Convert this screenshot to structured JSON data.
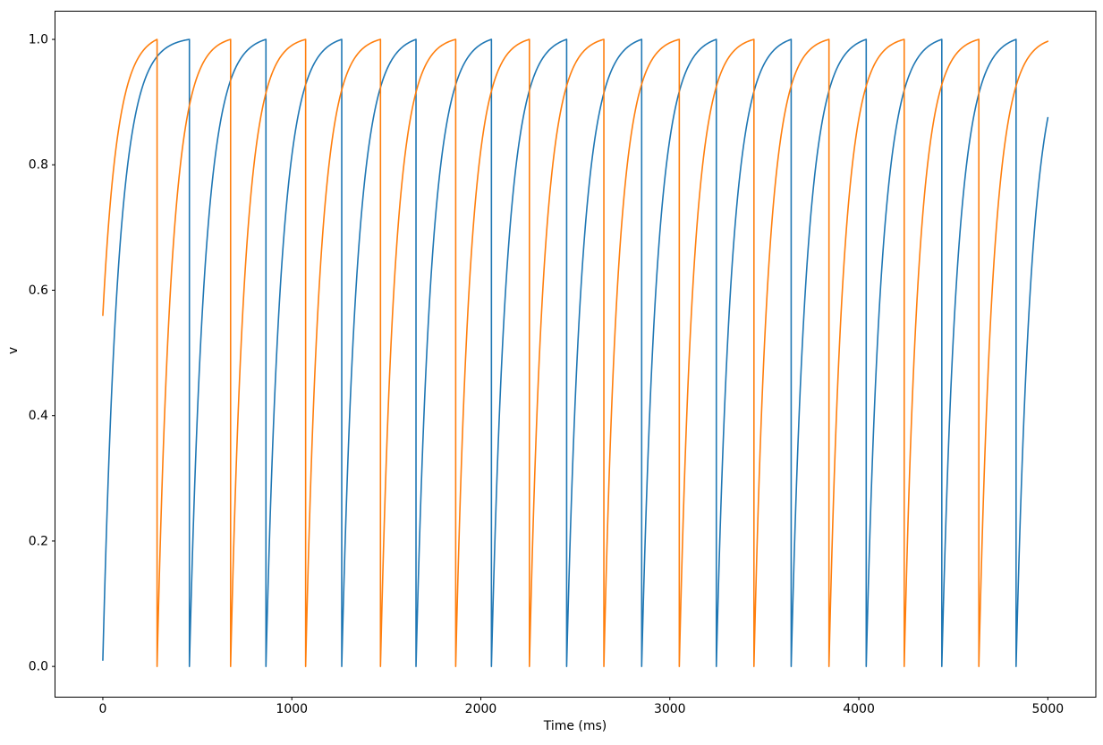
{
  "figure": {
    "background_color": "#ffffff",
    "title": ""
  },
  "chart_data": {
    "type": "line",
    "title": "",
    "xlabel": "Time (ms)",
    "ylabel": "v",
    "xlim": [
      -253,
      5254
    ],
    "ylim": [
      -0.049,
      1.045
    ],
    "x_ticks": [
      0,
      1000,
      2000,
      3000,
      4000,
      5000
    ],
    "x_tick_labels": [
      "0",
      "1000",
      "2000",
      "3000",
      "4000",
      "5000"
    ],
    "y_ticks": [
      0.0,
      0.2,
      0.4,
      0.6,
      0.8,
      1.0
    ],
    "y_tick_labels": [
      "0.0",
      "0.2",
      "0.4",
      "0.6",
      "0.8",
      "1.0"
    ],
    "grid": false,
    "legend": "none",
    "axis_color": "#000000",
    "line_width": 1.6,
    "series": [
      {
        "id": "blue-trace",
        "color": "#1f77b4",
        "curve": "exponential-charge-to-threshold",
        "description": "membrane potential charging to threshold 1.0 then resetting to 0",
        "v_start": 0.01,
        "reset_value": 0.0,
        "peak_value": 1.0,
        "tau_ms": 83,
        "t_start": 0,
        "t_end": 5000,
        "spike_times_ms": [
          458,
          863,
          1264,
          1657,
          2056,
          2454,
          2851,
          3246,
          3642,
          4039,
          4439,
          4832
        ],
        "end_value": 0.87
      },
      {
        "id": "orange-trace",
        "color": "#ff7f0e",
        "curve": "exponential-charge-to-threshold",
        "description": "membrane potential charging to threshold 1.0 then resetting to 0",
        "v_start": 0.56,
        "reset_value": 0.0,
        "peak_value": 1.0,
        "tau_ms": 78,
        "t_start": 0,
        "t_end": 5000,
        "spike_times_ms": [
          287,
          676,
          1073,
          1469,
          1867,
          2257,
          2651,
          3050,
          3445,
          3842,
          4240,
          4635
        ],
        "end_value": 0.99
      }
    ]
  }
}
